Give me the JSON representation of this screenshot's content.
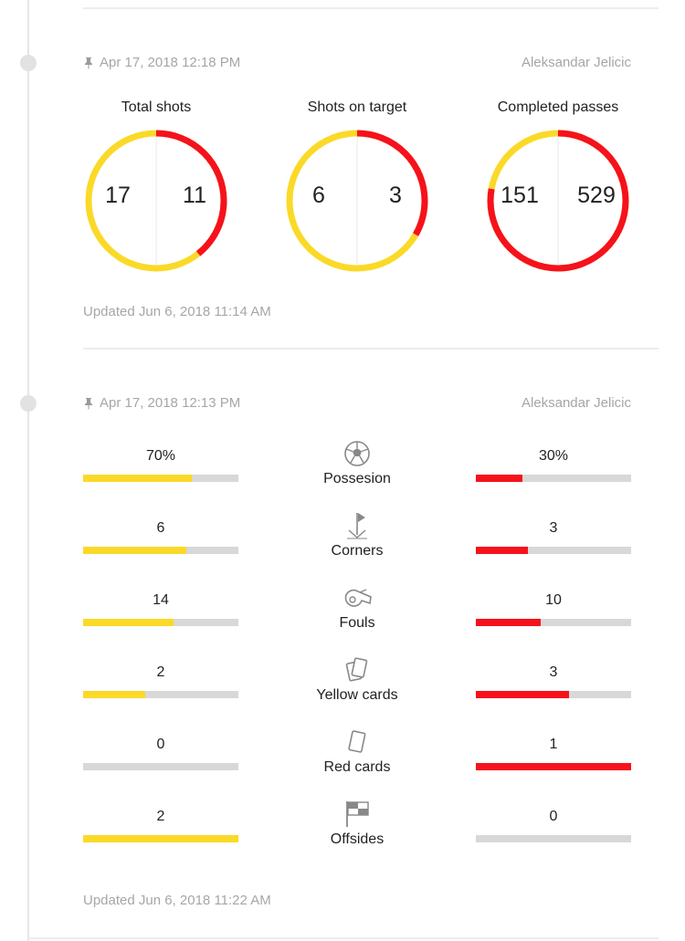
{
  "colors": {
    "home": "#fbd928",
    "away": "#f5121c",
    "empty": "#d8d8d8",
    "muted": "#a6a6a6"
  },
  "card1": {
    "date": "Apr 17, 2018 12:18 PM",
    "author": "Aleksandar Jelicic",
    "updated": "Updated Jun 6, 2018 11:14 AM",
    "donuts": [
      {
        "title": "Total shots",
        "home": "17",
        "away": "11"
      },
      {
        "title": "Shots on target",
        "home": "6",
        "away": "3"
      },
      {
        "title": "Completed passes",
        "home": "151",
        "away": "529"
      }
    ]
  },
  "card2": {
    "date": "Apr 17, 2018 12:13 PM",
    "author": "Aleksandar Jelicic",
    "updated": "Updated Jun 6, 2018 11:22 AM",
    "stats": [
      {
        "label": "Possesion",
        "icon": "soccer-ball-icon",
        "home": "70%",
        "away": "30%",
        "home_share": 0.7,
        "away_share": 0.3
      },
      {
        "label": "Corners",
        "icon": "corner-flag-icon",
        "home": "6",
        "away": "3",
        "home_share": 0.667,
        "away_share": 0.333
      },
      {
        "label": "Fouls",
        "icon": "whistle-icon",
        "home": "14",
        "away": "10",
        "home_share": 0.583,
        "away_share": 0.417
      },
      {
        "label": "Yellow cards",
        "icon": "yellow-cards-icon",
        "home": "2",
        "away": "3",
        "home_share": 0.4,
        "away_share": 0.6
      },
      {
        "label": "Red cards",
        "icon": "red-card-icon",
        "home": "0",
        "away": "1",
        "home_share": 0.0,
        "away_share": 1.0
      },
      {
        "label": "Offsides",
        "icon": "offside-flag-icon",
        "home": "2",
        "away": "0",
        "home_share": 1.0,
        "away_share": 0.0
      }
    ]
  }
}
